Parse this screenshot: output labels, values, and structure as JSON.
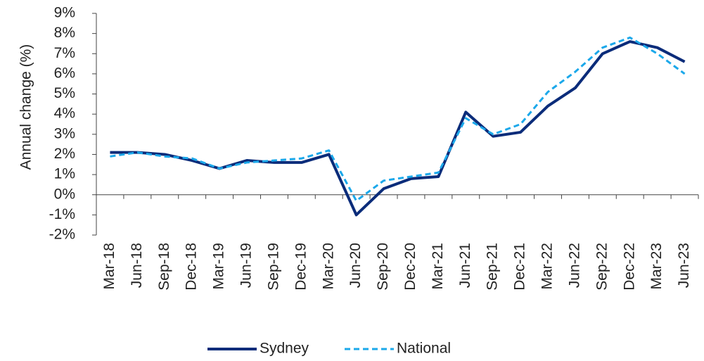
{
  "chart_data": {
    "type": "line",
    "y_label": "Annual change (%)",
    "categories": [
      "Mar-18",
      "Jun-18",
      "Sep-18",
      "Dec-18",
      "Mar-19",
      "Jun-19",
      "Sep-19",
      "Dec-19",
      "Mar-20",
      "Jun-20",
      "Sep-20",
      "Dec-20",
      "Mar-21",
      "Jun-21",
      "Sep-21",
      "Dec-21",
      "Mar-22",
      "Jun-22",
      "Sep-22",
      "Dec-22",
      "Mar-23",
      "Jun-23"
    ],
    "series": [
      {
        "name": "Sydney",
        "color": "#0b2c7a",
        "dash": false,
        "values": [
          2.1,
          2.1,
          2.0,
          1.7,
          1.3,
          1.7,
          1.6,
          1.6,
          2.0,
          -1.0,
          0.3,
          0.8,
          0.9,
          4.1,
          2.9,
          3.1,
          4.4,
          5.3,
          7.0,
          7.6,
          7.3,
          6.6
        ]
      },
      {
        "name": "National",
        "color": "#1ba8ea",
        "dash": true,
        "values": [
          1.9,
          2.1,
          1.9,
          1.8,
          1.3,
          1.6,
          1.7,
          1.8,
          2.2,
          -0.3,
          0.7,
          0.9,
          1.1,
          3.8,
          3.0,
          3.5,
          5.1,
          6.1,
          7.3,
          7.8,
          7.0,
          6.0
        ]
      }
    ],
    "ylim": [
      -2,
      9
    ],
    "yticks": [
      {
        "value": -2,
        "label": "-2%"
      },
      {
        "value": -1,
        "label": "-1%"
      },
      {
        "value": 0,
        "label": "0%"
      },
      {
        "value": 1,
        "label": "1%"
      },
      {
        "value": 2,
        "label": "2%"
      },
      {
        "value": 3,
        "label": "3%"
      },
      {
        "value": 4,
        "label": "4%"
      },
      {
        "value": 5,
        "label": "5%"
      },
      {
        "value": 6,
        "label": "6%"
      },
      {
        "value": 7,
        "label": "7%"
      },
      {
        "value": 8,
        "label": "8%"
      },
      {
        "value": 9,
        "label": "9%"
      }
    ],
    "grid": false,
    "legend": "bottom"
  }
}
